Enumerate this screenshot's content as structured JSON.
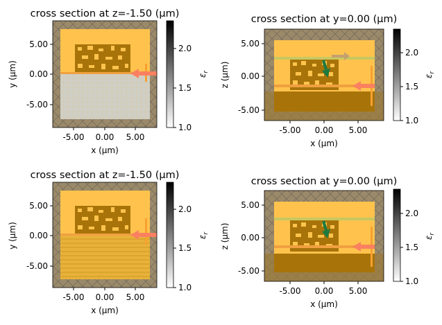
{
  "figure": {
    "panels": [
      {
        "title": "cross section at z=-1.50 (μm)",
        "xlabel": "x (μm)",
        "ylabel": "y (μm)",
        "xticks": [
          "-5.00",
          "0.00",
          "5.00"
        ],
        "yticks": [
          "5.00",
          "0.00",
          "-5.00"
        ],
        "colorbar_label": "εr",
        "colorbar_ticks": [
          "2.0",
          "1.5",
          "1.0"
        ]
      },
      {
        "title": "cross section at y=0.00 (μm)",
        "xlabel": "x (μm)",
        "ylabel": "z (μm)",
        "xticks": [
          "-5.00",
          "0.00",
          "5.00"
        ],
        "yticks": [
          "5.00",
          "0.00",
          "-5.00"
        ],
        "colorbar_label": "εr",
        "colorbar_ticks": [
          "2.0",
          "1.5",
          "1.0"
        ]
      },
      {
        "title": "cross section at z=-1.50 (μm)",
        "xlabel": "x (μm)",
        "ylabel": "y (μm)",
        "xticks": [
          "-5.00",
          "0.00",
          "5.00"
        ],
        "yticks": [
          "5.00",
          "0.00",
          "-5.00"
        ],
        "colorbar_label": "εr",
        "colorbar_ticks": [
          "2.0",
          "1.5",
          "1.0"
        ]
      },
      {
        "title": "cross section at y=0.00 (μm)",
        "xlabel": "x (μm)",
        "ylabel": "z (μm)",
        "xticks": [
          "-5.00",
          "0.00",
          "5.00"
        ],
        "yticks": [
          "5.00",
          "0.00",
          "-5.00"
        ],
        "colorbar_label": "εr",
        "colorbar_ticks": [
          "2.0",
          "1.5",
          "1.0"
        ]
      }
    ]
  },
  "chart_data": [
    {
      "type": "heatmap",
      "title": "cross section at z=-1.50 (μm)",
      "xlabel": "x (μm)",
      "ylabel": "y (μm)",
      "xlim": [
        -8.8,
        8.8
      ],
      "ylim": [
        -8.8,
        8.8
      ],
      "colorbar": {
        "label": "εr",
        "range": [
          1.0,
          2.35
        ],
        "ticks": [
          1.0,
          1.5,
          2.0
        ]
      },
      "colors": {
        "pml": "#9b8a6a",
        "sim_box": "#ffc34d",
        "design": "#a87409",
        "substrate": "#cfcfc6",
        "source": "#fa8060"
      }
    },
    {
      "type": "heatmap",
      "title": "cross section at y=0.00 (μm)",
      "xlabel": "x (μm)",
      "ylabel": "z (μm)",
      "xlim": [
        -8.8,
        8.8
      ],
      "ylim": [
        -6.8,
        6.8
      ],
      "colorbar": {
        "label": "εr",
        "range": [
          1.0,
          2.35
        ],
        "ticks": [
          1.0,
          1.5,
          2.0
        ]
      },
      "colors": {
        "pml": "#9b8a6a",
        "sim_box": "#ffc34d",
        "design": "#a87409",
        "substrate": "#a87409",
        "source": "#fa8060",
        "monitor": "#1e7a40"
      }
    },
    {
      "type": "heatmap",
      "title": "cross section at z=-1.50 (μm)",
      "xlabel": "x (μm)",
      "ylabel": "y (μm)",
      "xlim": [
        -8.8,
        8.8
      ],
      "ylim": [
        -8.8,
        8.8
      ],
      "colorbar": {
        "label": "εr",
        "range": [
          1.0,
          2.35
        ],
        "ticks": [
          1.0,
          1.5,
          2.0
        ]
      },
      "colors": {
        "pml": "#9b8a6a",
        "sim_box": "#ffc34d",
        "design": "#a87409",
        "substrate": "#e8b23a",
        "source": "#fa8060"
      }
    },
    {
      "type": "heatmap",
      "title": "cross section at y=0.00 (μm)",
      "xlabel": "x (μm)",
      "ylabel": "z (μm)",
      "xlim": [
        -8.8,
        8.8
      ],
      "ylim": [
        -6.8,
        6.8
      ],
      "colorbar": {
        "label": "εr",
        "range": [
          1.0,
          2.35
        ],
        "ticks": [
          1.0,
          1.5,
          2.0
        ]
      },
      "colors": {
        "pml": "#9b8a6a",
        "sim_box": "#ffc34d",
        "design": "#a87409",
        "substrate": "#a87409",
        "source": "#fa8060",
        "monitor": "#1e7a40"
      }
    }
  ]
}
